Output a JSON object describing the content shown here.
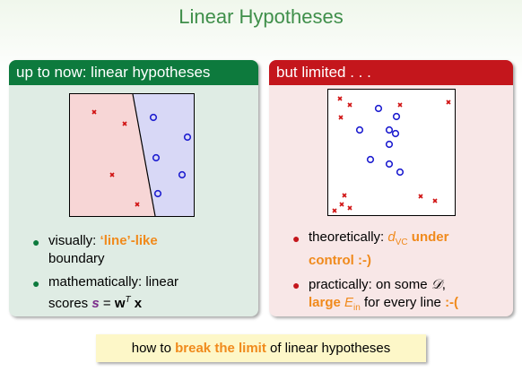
{
  "title": "Linear Hypotheses",
  "left_panel": {
    "header": "up to now: linear hypotheses",
    "bullet1": {
      "prefix": "visually: ",
      "highlight": "‘line’-like",
      "suffix": "boundary"
    },
    "bullet2": {
      "line1": "mathematically: linear",
      "line2_prefix": "scores ",
      "s": "s",
      "eq": " = ",
      "w": "w",
      "T": "T",
      "x": "x"
    }
  },
  "right_panel": {
    "header": "but limited . . .",
    "bullet1": {
      "prefix": "theoretically: ",
      "d": "d",
      "vc": "VC",
      "under": " under",
      "control": "control :-)"
    },
    "bullet2": {
      "line1_prefix": "practically: on some ",
      "D": "𝒟",
      "comma": ",",
      "large": "large ",
      "E": "E",
      "in": "in",
      "mid": " for every line ",
      "smiley": ":-("
    }
  },
  "footer": {
    "prefix": "how to ",
    "highlight": "break the limit",
    "suffix": " of linear hypotheses"
  },
  "colors": {
    "green": "#0d7a3d",
    "red": "#c4161c",
    "orange": "#f08a1c",
    "title": "#3f8f4a",
    "circle": "#1f1fd0",
    "cross": "#d01010"
  }
}
